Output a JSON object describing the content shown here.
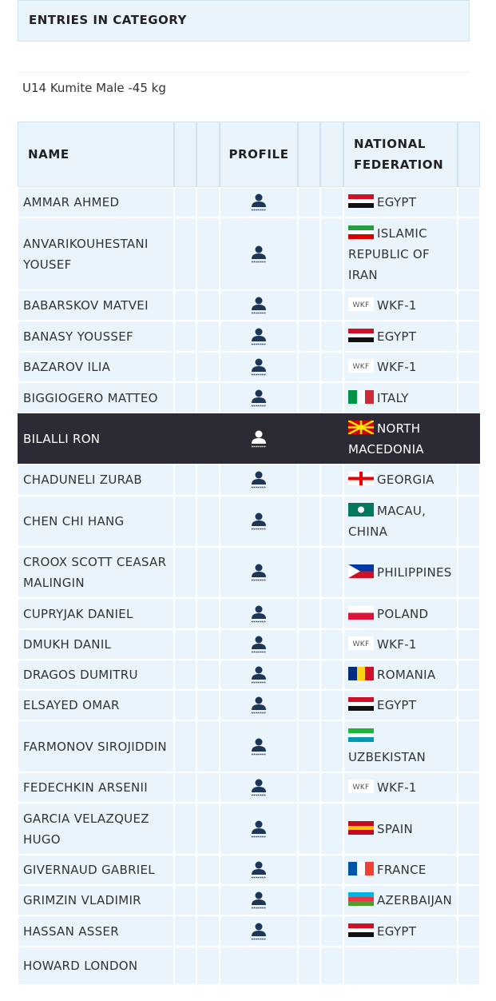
{
  "header": {
    "title": "ENTRIES IN CATEGORY"
  },
  "category": "U14 Kumite Male -45 kg",
  "table": {
    "columns": [
      "NAME",
      "PROFILE",
      "NATIONAL FEDERATION"
    ],
    "rows": [
      [
        "AMMAR AHMED",
        "EGYPT"
      ],
      [
        "ANVARIKOUHESTANI YOUSEF",
        "ISLAMIC REPUBLIC OF IRAN"
      ],
      [
        "BABARSKOV MATVEI",
        "WKF-1"
      ],
      [
        "BANASY YOUSSEF",
        "EGYPT"
      ],
      [
        "BAZAROV ILIA",
        "WKF-1"
      ],
      [
        "BIGGIOGERO MATTEO",
        "ITALY"
      ],
      [
        "BILALLI RON",
        "NORTH MACEDONIA"
      ],
      [
        "CHADUNELI ZURAB",
        "GEORGIA"
      ],
      [
        "CHEN CHI HANG",
        "MACAU, CHINA"
      ],
      [
        "CROOX SCOTT CEASAR MALINGIN",
        "PHILIPPINES"
      ],
      [
        "CUPRYJAK DANIEL",
        "POLAND"
      ],
      [
        "DMUKH DANIL",
        "WKF-1"
      ],
      [
        "DRAGOS DUMITRU",
        "ROMANIA"
      ],
      [
        "ELSAYED OMAR",
        "EGYPT"
      ],
      [
        "FARMONOV SIROJIDDIN",
        "UZBEKISTAN"
      ],
      [
        "FEDECHKIN ARSENII",
        "WKF-1"
      ],
      [
        "GARCIA VELAZQUEZ HUGO",
        "SPAIN"
      ],
      [
        "GIVERNAUD GABRIEL",
        "FRANCE"
      ],
      [
        "GRIMZIN VLADIMIR",
        "AZERBAIJAN"
      ],
      [
        "HASSAN ASSER",
        "EGYPT"
      ],
      [
        "HOWARD LONDON",
        ""
      ]
    ]
  }
}
